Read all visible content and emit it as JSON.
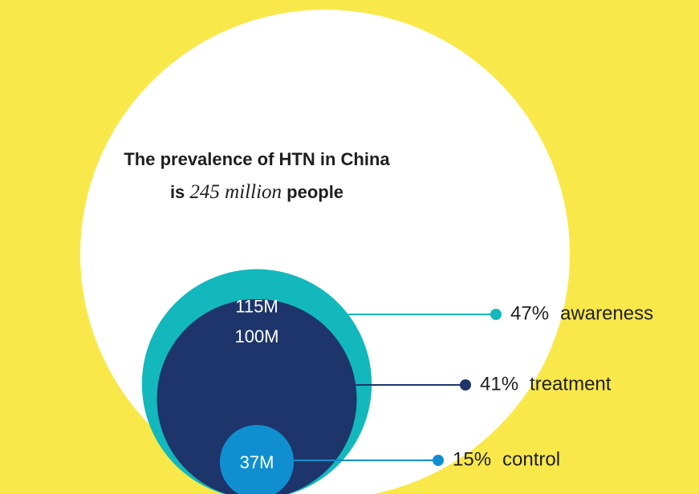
{
  "chart_data": {
    "type": "nested-circle",
    "title": "The prevalence of HTN in China",
    "title_prefix": "is",
    "total": 245,
    "total_label": "245 million",
    "title_suffix": "people",
    "total_color": "#ffffff",
    "categories": [
      "awareness",
      "treatment",
      "control"
    ],
    "values": [
      115,
      100,
      37
    ],
    "value_labels": [
      "115M",
      "100M",
      "37M"
    ],
    "shares": [
      47,
      41,
      15
    ],
    "share_labels": [
      "47%",
      "41%",
      "15%"
    ],
    "colors": [
      "#13b8bc",
      "#1d356b",
      "#0f8fd0"
    ]
  }
}
